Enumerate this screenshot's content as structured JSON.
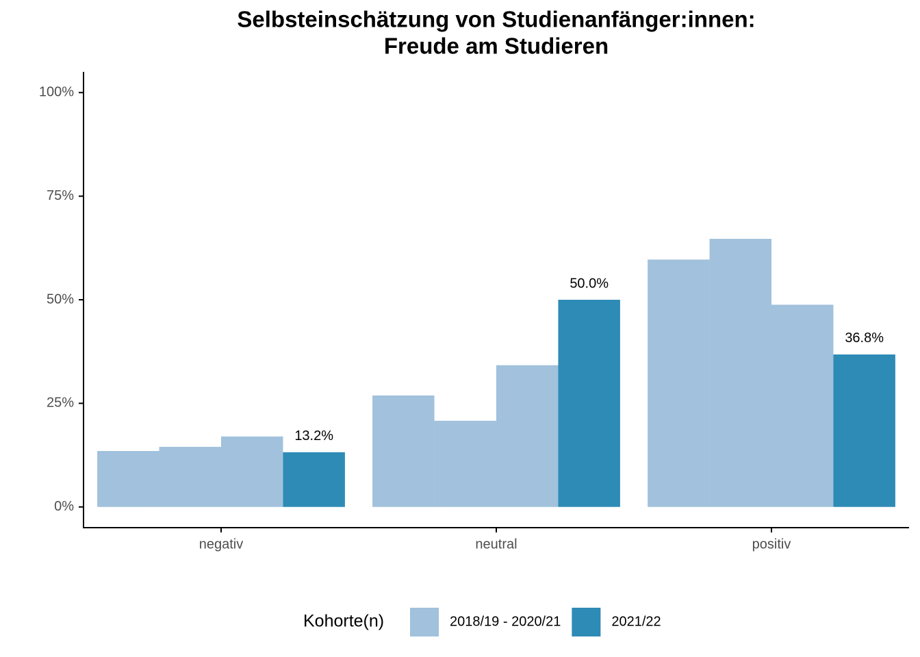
{
  "chart_data": {
    "type": "grouped_bar",
    "title": [
      "Selbsteinschätzung von Studienanfänger:innen:",
      "Freude am Studieren"
    ],
    "categories": [
      "negativ",
      "neutral",
      "positiv"
    ],
    "series": [
      {
        "name": "2018/19 - 2020/21",
        "color": "#a1c1dc",
        "values": [
          [
            13.5,
            14.5,
            17.0
          ],
          [
            26.9,
            20.8,
            34.2
          ],
          [
            59.7,
            64.7,
            48.8
          ]
        ]
      },
      {
        "name": "2021/22",
        "color": "#2e8bb6",
        "values": [
          13.2,
          50.0,
          36.8
        ],
        "value_labels": [
          "13.2%",
          "50.0%",
          "36.8%"
        ]
      }
    ],
    "ylim": [
      -5,
      105
    ],
    "yticks": [
      {
        "value": 0,
        "label": "0%"
      },
      {
        "value": 25,
        "label": "25%"
      },
      {
        "value": 50,
        "label": "50%"
      },
      {
        "value": 75,
        "label": "75%"
      },
      {
        "value": 100,
        "label": "100%"
      }
    ],
    "legend_title": "Kohorte(n)",
    "legend_position": "bottom"
  }
}
